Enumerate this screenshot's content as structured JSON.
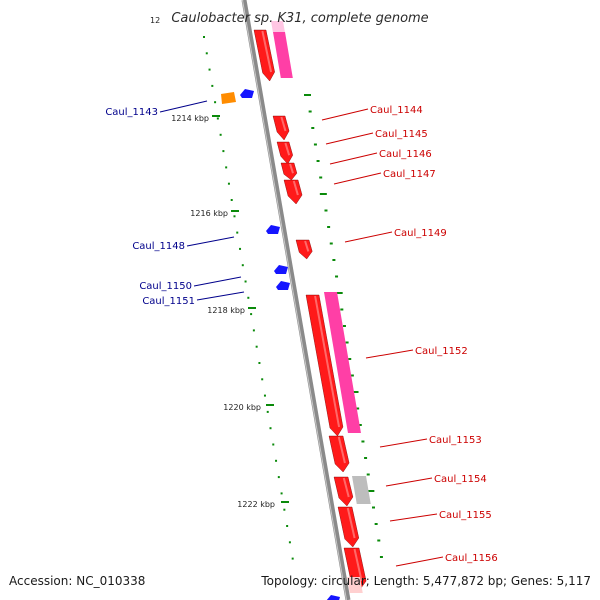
{
  "title": "Caulobacter sp. K31, complete genome",
  "title_fragment": "12",
  "footer": {
    "accession": "Accession: NC_010338",
    "topology": "Topology: circular; Length: 5,477,872 bp; Genes: 5,117"
  },
  "colors": {
    "backbone": "#8a8a8a",
    "forward_gene": "#ff1a1a",
    "forward_feature": "#ff3fa6",
    "reverse_gene": "#1515ff",
    "other_feature": "#ff8c00",
    "pseudo_feature": "#bdbdbd",
    "tick": "#0a8a0a",
    "forward_label": "#cc0000",
    "reverse_label": "#00008b"
  },
  "tick_labels": [
    "1214 kbp",
    "1216 kbp",
    "1218 kbp",
    "1220 kbp",
    "1222 kbp"
  ],
  "gene_labels": {
    "reverse": [
      "Caul_1143",
      "Caul_1148",
      "Caul_1150",
      "Caul_1151"
    ],
    "forward": [
      "Caul_1144",
      "Caul_1145",
      "Caul_1146",
      "Caul_1147",
      "Caul_1149",
      "Caul_1152",
      "Caul_1153",
      "Caul_1154",
      "Caul_1155",
      "Caul_1156"
    ]
  }
}
